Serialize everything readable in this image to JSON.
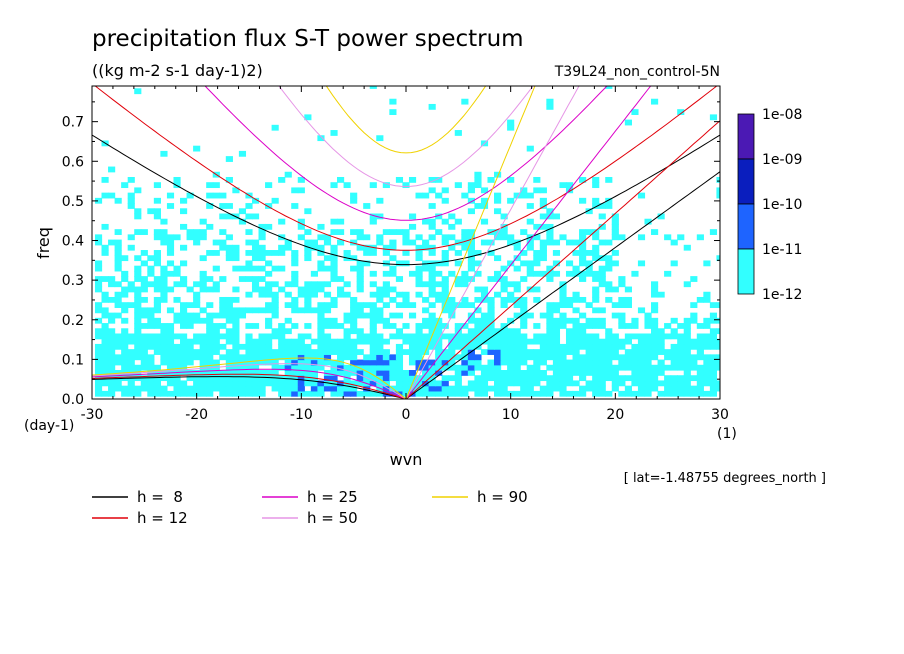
{
  "chart_data": {
    "type": "heatmap",
    "title": "precipitation flux S-T power spectrum",
    "units_label": "((kg m-2 s-1 day-1)2)",
    "run_label": "T39L24_non_control-5N",
    "xlabel": "wvn",
    "ylabel": "freq",
    "x_unit_label": "(1)",
    "y_unit_label": "(day-1)",
    "lat_note": "[ lat=-1.48755 degrees_north ]",
    "xlim": [
      -30,
      30
    ],
    "ylim": [
      0,
      0.79
    ],
    "x_ticks": [
      "-30",
      "-20",
      "-10",
      "0",
      "10",
      "20",
      "30"
    ],
    "x_tick_values": [
      -30,
      -20,
      -10,
      0,
      10,
      20,
      30
    ],
    "y_ticks": [
      "0.0",
      "0.1",
      "0.2",
      "0.3",
      "0.4",
      "0.5",
      "0.6",
      "0.7"
    ],
    "y_tick_values": [
      0,
      0.1,
      0.2,
      0.3,
      0.4,
      0.5,
      0.6,
      0.7
    ],
    "colorbar": {
      "labels": [
        "1e-08",
        "1e-09",
        "1e-10",
        "1e-11",
        "1e-12"
      ],
      "colors": [
        "#4b19b4",
        "#0a1ebe",
        "#1e64ff",
        "#32ffff"
      ]
    },
    "dispersion_curves": [
      {
        "label": "h =  8",
        "h": 8,
        "color": "#000000"
      },
      {
        "label": "h = 12",
        "h": 12,
        "color": "#e1000a"
      },
      {
        "label": "h = 25",
        "h": 25,
        "color": "#dc00c8"
      },
      {
        "label": "h = 50",
        "h": 50,
        "color": "#e696e6"
      },
      {
        "label": "h = 90",
        "h": 90,
        "color": "#f0d200"
      }
    ]
  }
}
